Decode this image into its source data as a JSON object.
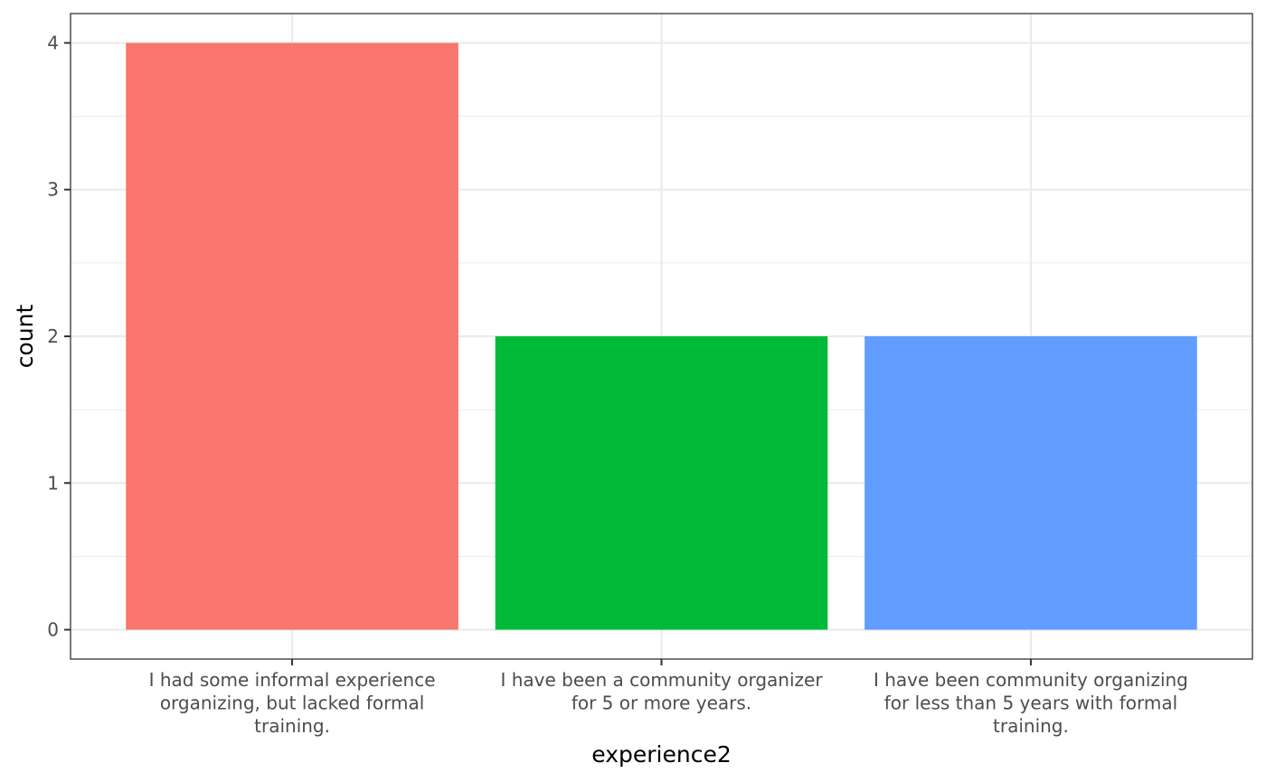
{
  "chart_data": {
    "type": "bar",
    "title": "",
    "xlabel": "experience2",
    "ylabel": "count",
    "categories": [
      [
        "I had some informal experience",
        "organizing, but lacked formal",
        "training."
      ],
      [
        "I have been a community organizer",
        "for 5 or more years."
      ],
      [
        "I have been community organizing",
        "for less than 5 years with formal",
        "training."
      ]
    ],
    "values": [
      4,
      2,
      2
    ],
    "colors": [
      "#F8766D",
      "#00BA38",
      "#619CFF"
    ],
    "ylim": [
      -0.2,
      4.2
    ],
    "yticks": [
      "0",
      "1",
      "2",
      "3",
      "4"
    ],
    "grid": true,
    "legend": "none"
  }
}
